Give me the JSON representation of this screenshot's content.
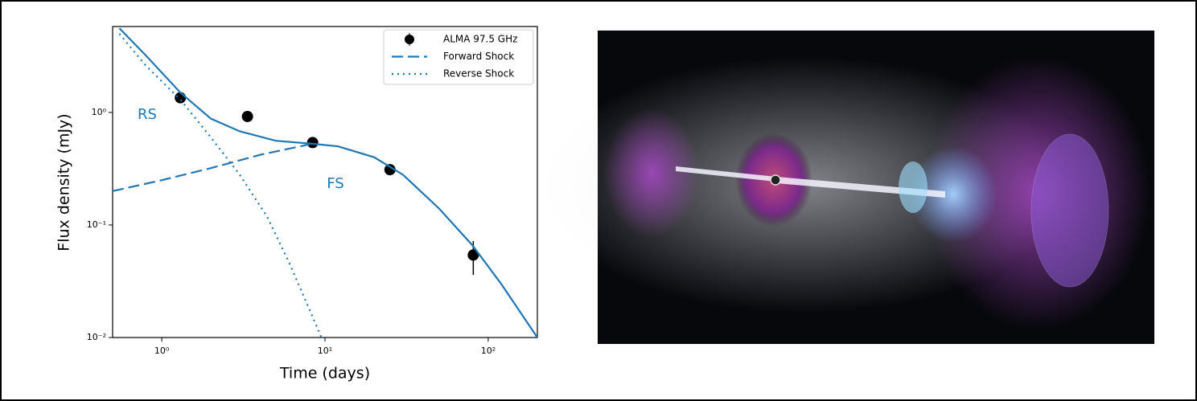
{
  "chart_data": {
    "type": "line",
    "xlabel": "Time (days)",
    "ylabel": "Flux density (mJy)",
    "xscale": "log",
    "yscale": "log",
    "xlim": [
      0.5,
      200
    ],
    "ylim": [
      0.01,
      5.8
    ],
    "xticks": [
      {
        "value": 1,
        "label": "10⁰"
      },
      {
        "value": 10,
        "label": "10¹"
      },
      {
        "value": 100,
        "label": "10²"
      }
    ],
    "yticks": [
      {
        "value": 0.01,
        "label": "10⁻²"
      },
      {
        "value": 0.1,
        "label": "10⁻¹"
      },
      {
        "value": 1,
        "label": "10⁰"
      }
    ],
    "legend": "upper right",
    "series": [
      {
        "name": "ALMA 97.5 GHz",
        "kind": "scatter",
        "color": "#000000",
        "x": [
          1.3,
          3.35,
          8.4,
          25,
          81
        ],
        "values": [
          1.35,
          0.92,
          0.54,
          0.31,
          0.054
        ],
        "errors": [
          0.05,
          0.04,
          0.03,
          0.03,
          0.018
        ]
      },
      {
        "name": "Forward Shock",
        "kind": "dashed",
        "color": "#1f77b4",
        "x": [
          0.5,
          1,
          2,
          4,
          8
        ],
        "values": [
          0.2,
          0.25,
          0.32,
          0.42,
          0.52
        ]
      },
      {
        "name": "Reverse Shock",
        "kind": "dotted",
        "color": "#1f77b4",
        "x": [
          0.55,
          0.8,
          1.3,
          2,
          3,
          4.4,
          6,
          8,
          9.5
        ],
        "values": [
          5.0,
          2.6,
          1.3,
          0.6,
          0.28,
          0.12,
          0.047,
          0.018,
          0.01
        ]
      },
      {
        "kind": "solid",
        "color": "#1f77b4",
        "x": [
          0.55,
          0.8,
          1.3,
          2,
          3,
          5,
          8,
          12,
          20,
          30,
          50,
          80,
          120,
          200
        ],
        "values": [
          5.6,
          3.2,
          1.5,
          0.88,
          0.68,
          0.56,
          0.53,
          0.5,
          0.4,
          0.28,
          0.14,
          0.066,
          0.03,
          0.01
        ]
      }
    ],
    "annotations": [
      "RS",
      "FS"
    ]
  }
}
